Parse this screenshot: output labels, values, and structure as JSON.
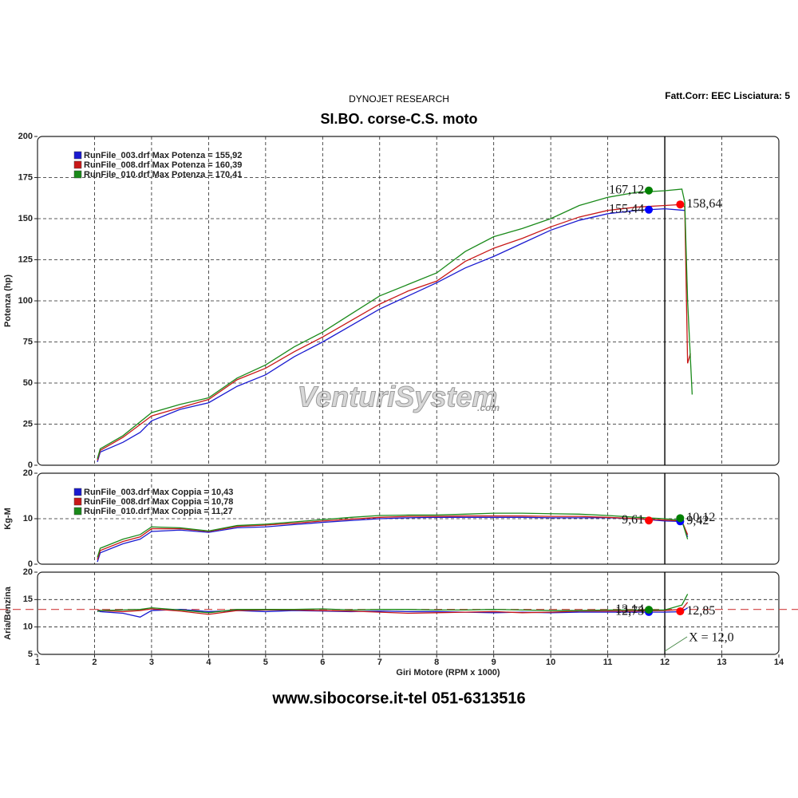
{
  "header": {
    "brand": "DYNOJET RESEARCH",
    "title": "SI.BO. corse-C.S. moto",
    "settings": "Fatt.Corr: EEC  Lisciatura: 5",
    "watermark": "VenturiSystem",
    "watermark_suffix": ".com"
  },
  "footer": "www.sibocorse.it-tel 051-6313516",
  "chart_data": [
    {
      "type": "line",
      "ylabel": "Potenza (hp)",
      "xlim": [
        1,
        14
      ],
      "xticks": [
        1,
        2,
        3,
        4,
        5,
        6,
        7,
        8,
        9,
        10,
        11,
        12,
        13,
        14
      ],
      "ylim": [
        0,
        200
      ],
      "yticks": [
        0,
        25,
        50,
        75,
        100,
        125,
        150,
        175,
        200
      ],
      "grid": true,
      "series": [
        {
          "name": "RunFile_003.drf Max Potenza = 155,92",
          "color": "#1a1ad0",
          "x": [
            2.05,
            2.1,
            2.5,
            2.8,
            3,
            3.5,
            4,
            4.5,
            5,
            5.5,
            6,
            6.5,
            7,
            7.5,
            8,
            8.5,
            9,
            9.5,
            10,
            10.5,
            11,
            11.5,
            12,
            12.35
          ],
          "values": [
            2,
            8,
            14,
            20,
            27,
            34,
            38,
            48,
            55,
            66,
            75,
            85,
            95,
            103,
            111,
            120,
            127,
            135,
            143,
            149,
            153,
            155,
            156,
            155
          ],
          "markers": [
            {
              "x": 11.72,
              "y": 155.44,
              "label": "155,44",
              "color": "#0000ff"
            }
          ]
        },
        {
          "name": "RunFile_008.drf Max Potenza = 160,39",
          "color": "#c81818",
          "x": [
            2.05,
            2.1,
            2.5,
            3,
            3.5,
            4,
            4.5,
            5,
            5.5,
            6,
            6.5,
            7,
            7.5,
            8,
            8.5,
            9,
            9.5,
            10,
            10.5,
            11,
            11.5,
            12,
            12.3,
            12.35,
            12.38,
            12.4,
            12.45
          ],
          "values": [
            3,
            9,
            17,
            30,
            35,
            40,
            52,
            59,
            69,
            78,
            88,
            98,
            106,
            112,
            124,
            132,
            138,
            145,
            151,
            155,
            157,
            158,
            158.6,
            157,
            100,
            62,
            68
          ],
          "markers": [
            {
              "x": 12.27,
              "y": 158.64,
              "label": "158,64",
              "color": "#ff0000"
            }
          ]
        },
        {
          "name": "RunFile_010.drf Max Potenza = 170,41",
          "color": "#1a8a1a",
          "x": [
            2.05,
            2.1,
            2.5,
            3,
            3.5,
            4,
            4.5,
            5,
            5.5,
            6,
            6.5,
            7,
            7.5,
            8,
            8.5,
            9,
            9.5,
            10,
            10.5,
            11,
            11.5,
            12,
            12.3,
            12.35,
            12.4,
            12.48
          ],
          "values": [
            4,
            10,
            18,
            32,
            37,
            41,
            53,
            61,
            72,
            81,
            92,
            103,
            110,
            117,
            130,
            139,
            144,
            150,
            158,
            163,
            166,
            167,
            168,
            160,
            100,
            43
          ],
          "markers": [
            {
              "x": 11.72,
              "y": 167.12,
              "label": "167,12",
              "color": "#008000"
            }
          ]
        }
      ]
    },
    {
      "type": "line",
      "ylabel": "Kg-M",
      "xlim": [
        1,
        14
      ],
      "xticks": [
        1,
        2,
        3,
        4,
        5,
        6,
        7,
        8,
        9,
        10,
        11,
        12,
        13,
        14
      ],
      "ylim": [
        0,
        20
      ],
      "yticks": [
        0,
        10,
        20
      ],
      "grid": true,
      "series": [
        {
          "name": "RunFile_003.drf Max Coppia = 10,43",
          "color": "#1a1ad0",
          "x": [
            2.05,
            2.1,
            2.5,
            2.8,
            3,
            3.5,
            4,
            4.5,
            5,
            5.5,
            6,
            6.5,
            7,
            7.5,
            8,
            8.5,
            9,
            9.5,
            10,
            10.5,
            11,
            11.5,
            12,
            12.3,
            12.4
          ],
          "values": [
            0.5,
            2.5,
            4.5,
            5.5,
            7.2,
            7.5,
            7,
            8,
            8.2,
            8.7,
            9.2,
            9.6,
            10,
            10.2,
            10.3,
            10.3,
            10.3,
            10.3,
            10.2,
            10.2,
            10.2,
            10,
            9.5,
            9.4,
            6
          ],
          "markers": [
            {
              "x": 12.27,
              "y": 9.42,
              "label": "9,42",
              "color": "#0000ff"
            }
          ]
        },
        {
          "name": "RunFile_008.drf Max Coppia = 10,78",
          "color": "#c81818",
          "x": [
            2.05,
            2.1,
            2.5,
            2.8,
            3,
            3.5,
            4,
            4.5,
            5,
            5.5,
            6,
            6.5,
            7,
            7.5,
            8,
            8.5,
            9,
            9.5,
            10,
            10.5,
            11,
            11.5,
            12,
            12.3,
            12.4
          ],
          "values": [
            1,
            3,
            5,
            6,
            7.8,
            7.8,
            7.2,
            8.3,
            8.6,
            9,
            9.5,
            9.9,
            10.3,
            10.5,
            10.5,
            10.6,
            10.6,
            10.6,
            10.5,
            10.5,
            10.3,
            10,
            9.7,
            9.5,
            6.5
          ],
          "markers": [
            {
              "x": 11.72,
              "y": 9.61,
              "label": "9,61",
              "color": "#ff0000"
            }
          ]
        },
        {
          "name": "RunFile_010.drf Max Coppia = 11,27",
          "color": "#1a8a1a",
          "x": [
            2.05,
            2.1,
            2.5,
            2.8,
            3,
            3.5,
            4,
            4.5,
            5,
            5.5,
            6,
            6.5,
            7,
            7.5,
            8,
            8.5,
            9,
            9.5,
            10,
            10.5,
            11,
            11.5,
            12,
            12.3,
            12.4
          ],
          "values": [
            1.5,
            3.5,
            5.5,
            6.5,
            8.2,
            8,
            7.3,
            8.5,
            8.8,
            9.3,
            9.8,
            10.3,
            10.7,
            10.8,
            10.8,
            11,
            11.2,
            11.2,
            11.1,
            11,
            10.7,
            10.3,
            10,
            9.6,
            5.5
          ],
          "markers": [
            {
              "x": 12.27,
              "y": 10.12,
              "label": "10,12",
              "color": "#008000"
            }
          ]
        }
      ]
    },
    {
      "type": "line",
      "ylabel": "Aria/Benzina",
      "xlabel": "Giri Motore (RPM x 1000)",
      "xlim": [
        1,
        14
      ],
      "xticks": [
        1,
        2,
        3,
        4,
        5,
        6,
        7,
        8,
        9,
        10,
        11,
        12,
        13,
        14
      ],
      "ylim": [
        5,
        20
      ],
      "yticks": [
        5,
        10,
        15,
        20
      ],
      "grid": true,
      "reference_y": 13.2,
      "reference_color": "#d04040",
      "cursor": {
        "value": 12,
        "label": "X = 12,0"
      },
      "series": [
        {
          "color": "#1a1ad0",
          "x": [
            2.05,
            2.1,
            2.5,
            2.8,
            3,
            3.5,
            4,
            4.5,
            5,
            5.5,
            6,
            6.5,
            7,
            7.5,
            8,
            8.5,
            9,
            9.5,
            10,
            10.5,
            11,
            11.5,
            12,
            12.3,
            12.4
          ],
          "values": [
            13,
            12.8,
            12.5,
            11.8,
            13,
            13.2,
            12.8,
            13,
            12.8,
            13,
            12.9,
            12.8,
            12.9,
            12.8,
            12.8,
            12.7,
            12.6,
            12.7,
            12.6,
            12.7,
            12.7,
            12.7,
            12.7,
            12.8,
            13.5
          ],
          "markers": [
            {
              "x": 11.72,
              "y": 12.73,
              "label": "12,73",
              "color": "#0000ff"
            }
          ]
        },
        {
          "color": "#c81818",
          "x": [
            2.05,
            2.1,
            2.5,
            2.8,
            3,
            3.5,
            4,
            4.5,
            5,
            5.5,
            6,
            6.5,
            7,
            7.5,
            8,
            8.5,
            9,
            9.5,
            10,
            10.5,
            11,
            11.5,
            12,
            12.3,
            12.4
          ],
          "values": [
            13.2,
            13,
            12.8,
            13,
            13.3,
            12.9,
            12.3,
            13,
            13.1,
            13.1,
            13,
            12.9,
            12.7,
            12.5,
            12.6,
            12.7,
            12.8,
            12.6,
            12.7,
            12.9,
            12.9,
            12.9,
            13,
            13.2,
            14.5
          ],
          "markers": [
            {
              "x": 12.27,
              "y": 12.85,
              "label": "12,85",
              "color": "#ff0000"
            }
          ]
        },
        {
          "color": "#1a8a1a",
          "x": [
            2.05,
            2.1,
            2.5,
            2.8,
            3,
            3.5,
            4,
            4.5,
            5,
            5.5,
            6,
            6.5,
            7,
            7.5,
            8,
            8.5,
            9,
            9.5,
            10,
            10.5,
            11,
            11.5,
            12,
            12.3,
            12.4
          ],
          "values": [
            12.8,
            13,
            13.1,
            13.2,
            13.5,
            13.1,
            12.6,
            13.2,
            13.2,
            13.2,
            13.3,
            13.1,
            13.2,
            13.2,
            13.1,
            13.1,
            13.2,
            13.1,
            13,
            13,
            13.1,
            13.1,
            13.1,
            14,
            16
          ],
          "markers": [
            {
              "x": 11.72,
              "y": 13.14,
              "label": "13,14",
              "color": "#008000"
            }
          ]
        }
      ]
    }
  ]
}
